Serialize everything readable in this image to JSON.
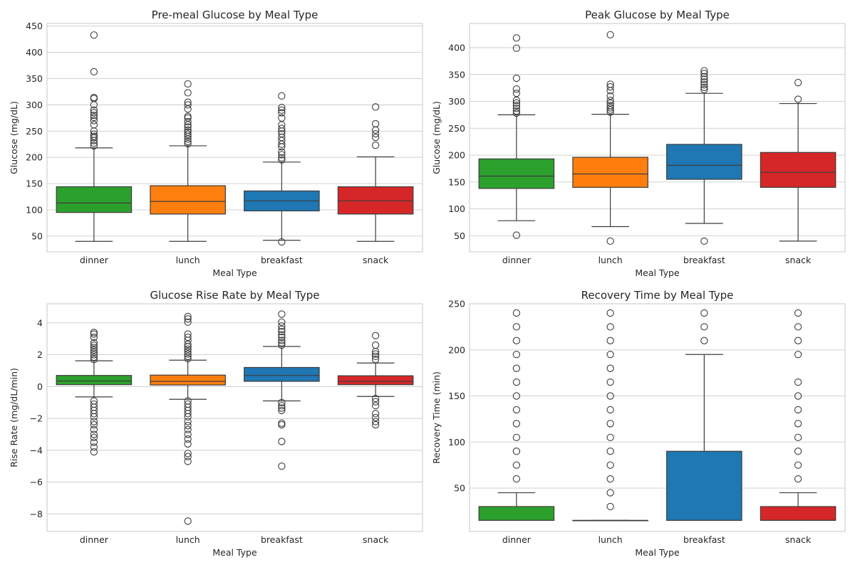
{
  "colors": {
    "dinner": "#2ca02c",
    "lunch": "#ff7f0e",
    "breakfast": "#1f77b4",
    "snack": "#d62728",
    "grid": "#cccccc",
    "frame": "#cccccc",
    "line": "#3d3d3d"
  },
  "chart_data": [
    {
      "type": "box",
      "title": "Pre-meal Glucose by Meal Type",
      "xlabel": "Meal Type",
      "ylabel": "Glucose (mg/dL)",
      "ylim": [
        20,
        455
      ],
      "yticks": [
        50,
        100,
        150,
        200,
        250,
        300,
        350,
        400,
        450
      ],
      "grid": true,
      "categories": [
        "dinner",
        "lunch",
        "breakfast",
        "snack"
      ],
      "boxes": [
        {
          "whisker_low": 40,
          "q1": 95,
          "median": 113,
          "q3": 144,
          "whisker_high": 218,
          "outliers": [
            222,
            227,
            232,
            237,
            240,
            244,
            250,
            262,
            270,
            276,
            280,
            285,
            290,
            300,
            312,
            314,
            363,
            433
          ]
        },
        {
          "whisker_low": 40,
          "q1": 92,
          "median": 116,
          "q3": 146,
          "whisker_high": 222,
          "outliers": [
            226,
            230,
            235,
            240,
            244,
            248,
            252,
            258,
            262,
            268,
            275,
            278,
            292,
            300,
            305,
            323,
            340
          ]
        },
        {
          "whisker_low": 42,
          "q1": 98,
          "median": 117,
          "q3": 136,
          "whisker_high": 191,
          "outliers": [
            39,
            195,
            199,
            205,
            210,
            220,
            225,
            232,
            238,
            245,
            250,
            255,
            262,
            275,
            285,
            290,
            295,
            317
          ]
        },
        {
          "whisker_low": 40,
          "q1": 92,
          "median": 117,
          "q3": 144,
          "whisker_high": 201,
          "outliers": [
            223,
            238,
            245,
            252,
            264,
            296
          ]
        }
      ]
    },
    {
      "type": "box",
      "title": "Peak Glucose by Meal Type",
      "xlabel": "Meal Type",
      "ylabel": "Glucose (mg/dL)",
      "ylim": [
        20,
        445
      ],
      "yticks": [
        50,
        100,
        150,
        200,
        250,
        300,
        350,
        400
      ],
      "grid": true,
      "categories": [
        "dinner",
        "lunch",
        "breakfast",
        "snack"
      ],
      "boxes": [
        {
          "whisker_low": 78,
          "q1": 138,
          "median": 161,
          "q3": 193,
          "whisker_high": 275,
          "outliers": [
            51,
            278,
            282,
            287,
            292,
            297,
            302,
            315,
            323,
            343,
            399,
            418
          ]
        },
        {
          "whisker_low": 67,
          "q1": 140,
          "median": 165,
          "q3": 196,
          "whisker_high": 276,
          "outliers": [
            40,
            280,
            284,
            288,
            292,
            297,
            302,
            310,
            320,
            327,
            332,
            424
          ]
        },
        {
          "whisker_low": 73,
          "q1": 155,
          "median": 181,
          "q3": 220,
          "whisker_high": 315,
          "outliers": [
            40,
            322,
            326,
            331,
            336,
            341,
            346,
            352,
            357
          ]
        },
        {
          "whisker_low": 40,
          "q1": 140,
          "median": 168,
          "q3": 205,
          "whisker_high": 296,
          "outliers": [
            304,
            335
          ]
        }
      ]
    },
    {
      "type": "box",
      "title": "Glucose Rise Rate by Meal Type",
      "xlabel": "Meal Type",
      "ylabel": "Rise Rate (mg/dL/min)",
      "ylim": [
        -9.1,
        5.2
      ],
      "yticks": [
        -8,
        -6,
        -4,
        -2,
        0,
        2,
        4
      ],
      "ytick_labels": [
        "−8",
        "−6",
        "−4",
        "−2",
        "0",
        "2",
        "4"
      ],
      "grid": true,
      "categories": [
        "dinner",
        "lunch",
        "breakfast",
        "snack"
      ],
      "boxes": [
        {
          "whisker_low": -0.65,
          "q1": 0.12,
          "median": 0.35,
          "q3": 0.7,
          "whisker_high": 1.62,
          "outliers": [
            -4.1,
            -3.8,
            -3.5,
            -3.2,
            -3.0,
            -2.7,
            -2.4,
            -2.2,
            -1.9,
            -1.7,
            -1.5,
            -1.3,
            -1.1,
            -0.9,
            1.7,
            1.85,
            2.0,
            2.15,
            2.3,
            2.45,
            2.6,
            2.75,
            3.1,
            3.3,
            3.4
          ]
        },
        {
          "whisker_low": -0.8,
          "q1": 0.1,
          "median": 0.33,
          "q3": 0.72,
          "whisker_high": 1.66,
          "outliers": [
            -8.45,
            -4.7,
            -4.4,
            -4.2,
            -3.6,
            -3.3,
            -3.0,
            -2.7,
            -2.45,
            -2.2,
            -1.9,
            -1.7,
            -1.5,
            -1.3,
            -1.1,
            -0.9,
            1.75,
            1.9,
            2.05,
            2.2,
            2.35,
            2.5,
            2.65,
            2.9,
            3.1,
            3.3,
            4.05,
            4.25,
            4.4
          ]
        },
        {
          "whisker_low": -0.9,
          "q1": 0.33,
          "median": 0.7,
          "q3": 1.2,
          "whisker_high": 2.52,
          "outliers": [
            -5.0,
            -3.45,
            -2.4,
            -2.3,
            -1.5,
            -1.35,
            -1.2,
            -1.0,
            2.6,
            2.75,
            2.9,
            3.1,
            3.25,
            3.45,
            3.6,
            3.8,
            4.05,
            4.55
          ]
        },
        {
          "whisker_low": -0.62,
          "q1": 0.12,
          "median": 0.33,
          "q3": 0.68,
          "whisker_high": 1.48,
          "outliers": [
            -2.4,
            -2.2,
            -1.95,
            -1.7,
            -1.2,
            -0.95,
            -0.75,
            1.7,
            1.9,
            2.05,
            2.2,
            2.6,
            3.2
          ]
        }
      ]
    },
    {
      "type": "box",
      "title": "Recovery Time by Meal Type",
      "xlabel": "Meal Type",
      "ylabel": "Recovery Time (min)",
      "ylim": [
        3,
        250
      ],
      "yticks": [
        50,
        100,
        150,
        200,
        250
      ],
      "grid": true,
      "categories": [
        "dinner",
        "lunch",
        "breakfast",
        "snack"
      ],
      "boxes": [
        {
          "whisker_low": 15,
          "q1": 15,
          "median": 15,
          "q3": 30,
          "whisker_high": 45,
          "outliers": [
            60,
            75,
            90,
            105,
            120,
            135,
            150,
            165,
            180,
            195,
            210,
            225,
            240
          ]
        },
        {
          "whisker_low": 15,
          "q1": 15,
          "median": 15,
          "q3": 15,
          "whisker_high": 15,
          "outliers": [
            30,
            45,
            60,
            75,
            90,
            105,
            120,
            135,
            150,
            165,
            180,
            195,
            210,
            225,
            240
          ]
        },
        {
          "whisker_low": 15,
          "q1": 15,
          "median": 15,
          "q3": 90,
          "whisker_high": 195,
          "outliers": [
            210,
            225,
            240
          ]
        },
        {
          "whisker_low": 15,
          "q1": 15,
          "median": 15,
          "q3": 30,
          "whisker_high": 45,
          "outliers": [
            60,
            75,
            90,
            105,
            120,
            135,
            150,
            165,
            195,
            210,
            225,
            240
          ]
        }
      ]
    }
  ]
}
